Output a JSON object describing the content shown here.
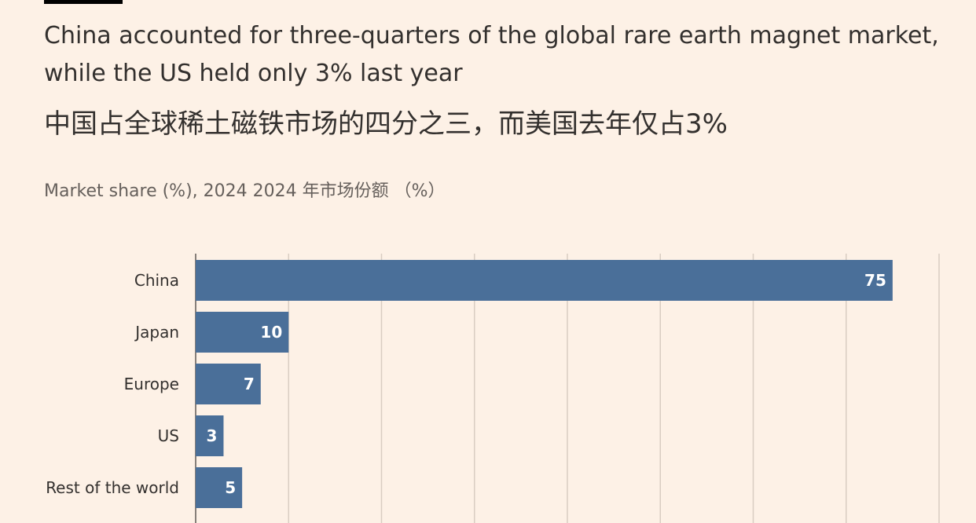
{
  "header": {
    "title": "China accounted for three-quarters of the global rare earth magnet market, while the US held only 3% last year",
    "title_cn": "中国占全球稀土磁铁市场的四分之三，而美国去年仅占3%",
    "subtitle": "Market share (%), 2024  2024 年市场份额 （%）"
  },
  "colors": {
    "background": "#fdf1e6",
    "bar": "#4a6f99",
    "grid": "#d9cdc2",
    "text": "#33302e"
  },
  "chart_data": {
    "type": "bar",
    "orientation": "horizontal",
    "categories": [
      "China",
      "Japan",
      "Europe",
      "US",
      "Rest of the world"
    ],
    "values": [
      75,
      10,
      7,
      3,
      5
    ],
    "xlim": [
      0,
      80
    ],
    "grid": true,
    "title": "",
    "xlabel": "",
    "ylabel": ""
  }
}
